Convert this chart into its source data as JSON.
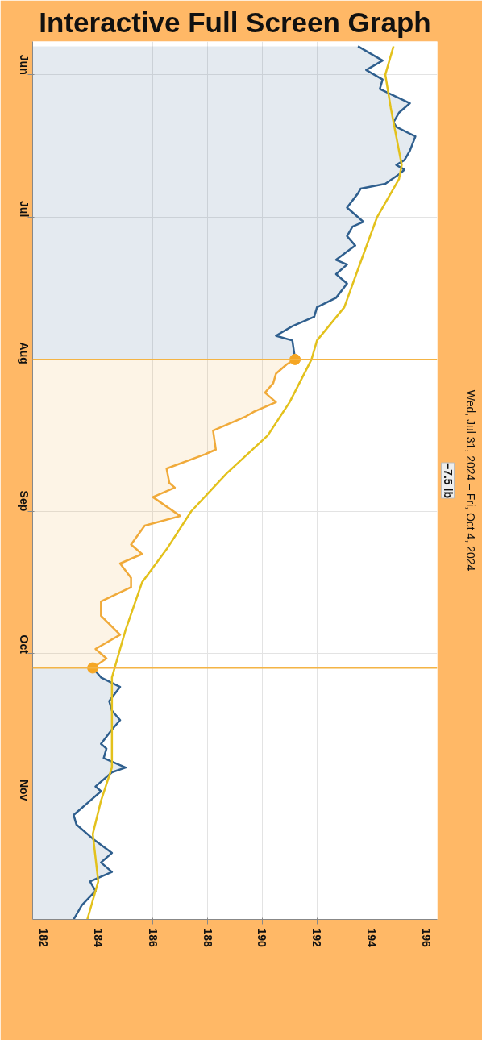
{
  "chart_data": {
    "type": "area",
    "title": "Interactive Full Screen Graph",
    "orientation": "horizontal",
    "xlim": [
      181.6,
      196.4
    ],
    "xticks": [
      182,
      184,
      186,
      188,
      190,
      192,
      194,
      196
    ],
    "ylim": [
      "2024-11-26",
      "2024-05-25"
    ],
    "yticks": [
      {
        "value": "2024-06-01",
        "label": "Jun"
      },
      {
        "value": "2024-07-01",
        "label": "Jul"
      },
      {
        "value": "2024-08-01",
        "label": "Aug"
      },
      {
        "value": "2024-09-01",
        "label": "Sep"
      },
      {
        "value": "2024-10-01",
        "label": "Oct"
      },
      {
        "value": "2024-11-01",
        "label": "Nov"
      }
    ],
    "grid": true,
    "series": [
      {
        "color": "#2f5f8e",
        "x": [
          "2024-05-26",
          "2024-05-29",
          "2024-05-31",
          "2024-06-02",
          "2024-06-04",
          "2024-06-07",
          "2024-06-09",
          "2024-06-11",
          "2024-06-12",
          "2024-06-14",
          "2024-06-17",
          "2024-06-19",
          "2024-06-20",
          "2024-06-21",
          "2024-06-22",
          "2024-06-24",
          "2024-06-25",
          "2024-06-26",
          "2024-06-29",
          "2024-07-02",
          "2024-07-03",
          "2024-07-05",
          "2024-07-07",
          "2024-07-10",
          "2024-07-11",
          "2024-07-13",
          "2024-07-15",
          "2024-07-18",
          "2024-07-20",
          "2024-07-22",
          "2024-07-24",
          "2024-07-26",
          "2024-07-27",
          "2024-07-31"
        ],
        "values": [
          193.5,
          194.4,
          193.8,
          194.4,
          194.3,
          195.4,
          195.0,
          194.8,
          194.9,
          195.6,
          195.4,
          195.2,
          194.9,
          195.2,
          195.0,
          194.5,
          193.6,
          193.5,
          193.1,
          193.7,
          193.3,
          193.1,
          193.4,
          192.7,
          193.1,
          192.7,
          193.1,
          192.7,
          192.0,
          191.9,
          191.1,
          190.5,
          191.1,
          191.2
        ]
      },
      {
        "color": "#f0aa3a",
        "x": [
          "2024-07-31",
          "2024-08-01",
          "2024-08-03",
          "2024-08-05",
          "2024-08-07",
          "2024-08-09",
          "2024-08-11",
          "2024-08-12",
          "2024-08-15",
          "2024-08-19",
          "2024-08-20",
          "2024-08-23",
          "2024-08-26",
          "2024-08-27",
          "2024-08-29",
          "2024-09-02",
          "2024-09-04",
          "2024-09-08",
          "2024-09-10",
          "2024-09-12",
          "2024-09-15",
          "2024-09-17",
          "2024-09-20",
          "2024-09-23",
          "2024-09-27",
          "2024-09-30",
          "2024-10-02",
          "2024-10-04"
        ],
        "values": [
          191.2,
          190.9,
          190.5,
          190.4,
          190.1,
          190.5,
          189.7,
          189.4,
          188.2,
          188.3,
          187.9,
          186.5,
          186.6,
          186.8,
          186.0,
          187.0,
          185.7,
          185.2,
          185.6,
          184.8,
          185.2,
          185.2,
          184.1,
          184.1,
          184.8,
          183.9,
          184.3,
          183.8
        ]
      },
      {
        "color": "#2f5f8e",
        "x": [
          "2024-10-04",
          "2024-10-06",
          "2024-10-08",
          "2024-10-11",
          "2024-10-13",
          "2024-10-15",
          "2024-10-17",
          "2024-10-20",
          "2024-10-21",
          "2024-10-23",
          "2024-10-25",
          "2024-10-26",
          "2024-10-29",
          "2024-10-30",
          "2024-11-01",
          "2024-11-04",
          "2024-11-06",
          "2024-11-09",
          "2024-11-12",
          "2024-11-14",
          "2024-11-16",
          "2024-11-18",
          "2024-11-20",
          "2024-11-23",
          "2024-11-26"
        ],
        "values": [
          183.8,
          184.1,
          184.8,
          184.4,
          184.5,
          184.8,
          184.5,
          184.1,
          184.3,
          184.2,
          185.0,
          184.5,
          183.9,
          184.1,
          183.7,
          183.1,
          183.2,
          183.8,
          184.5,
          184.1,
          184.5,
          183.7,
          183.9,
          183.4,
          183.1
        ]
      },
      {
        "type": "line",
        "color": "#e3c11c",
        "x": [
          "2024-05-26",
          "2024-06-01",
          "2024-06-08",
          "2024-06-20",
          "2024-06-23",
          "2024-07-01",
          "2024-07-12",
          "2024-07-20",
          "2024-07-27",
          "2024-07-31",
          "2024-08-09",
          "2024-08-16",
          "2024-08-24",
          "2024-09-01",
          "2024-09-09",
          "2024-09-16",
          "2024-09-26",
          "2024-09-28",
          "2024-10-06",
          "2024-10-25",
          "2024-11-01",
          "2024-11-08",
          "2024-11-18",
          "2024-11-26"
        ],
        "values": [
          194.8,
          194.5,
          194.7,
          195.1,
          195.0,
          194.2,
          193.5,
          193.0,
          192.0,
          191.8,
          191.0,
          190.2,
          188.7,
          187.4,
          186.5,
          185.6,
          185.0,
          184.9,
          184.5,
          184.5,
          184.1,
          183.8,
          184.0,
          183.6
        ]
      },
      {
        "type": "scatter",
        "color": "#f5a623",
        "marker": "circle",
        "x": [
          "2024-07-31",
          "2024-10-04"
        ],
        "values": [
          191.2,
          183.8
        ]
      }
    ],
    "ref_lines": [
      {
        "axis": "y",
        "value": "2024-07-31",
        "color": "#f4b445"
      },
      {
        "axis": "y",
        "value": "2024-10-04",
        "color": "#f4b445"
      }
    ],
    "annotations": [
      "Wed, Jul 31, 2024 – Fri, Oct 4, 2024",
      "−7.5 lb"
    ]
  }
}
